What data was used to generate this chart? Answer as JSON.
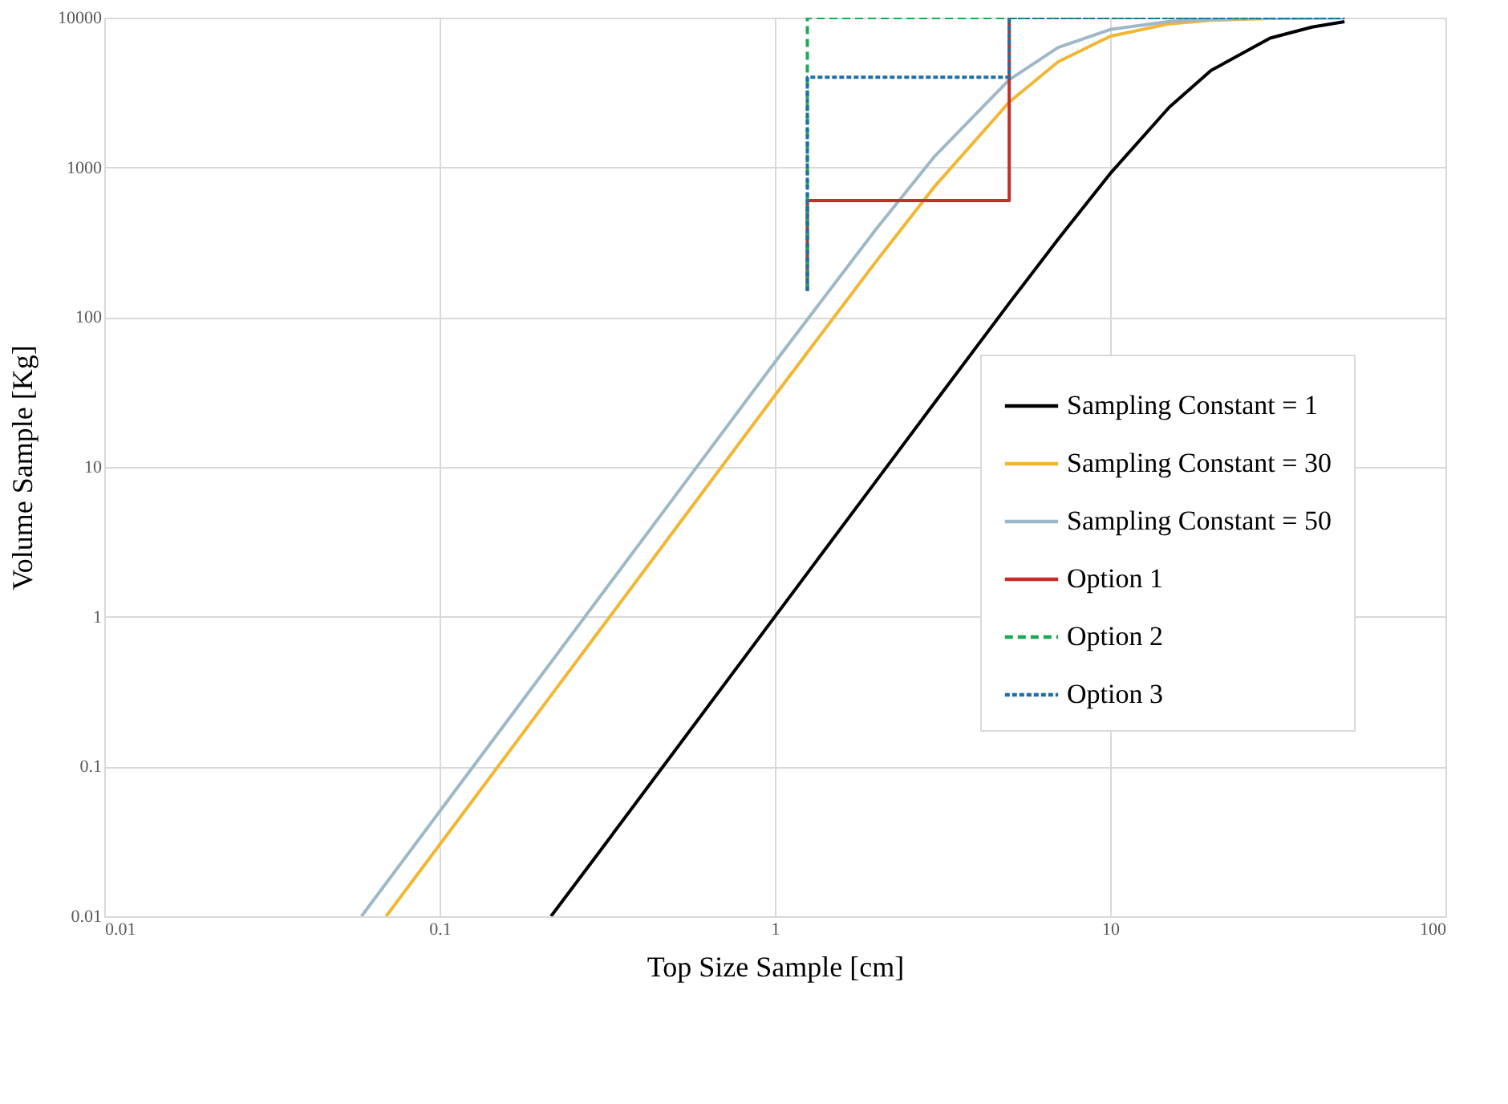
{
  "chart_data": {
    "type": "line",
    "xlabel": "Top Size Sample [cm]",
    "ylabel": "Volume Sample [Kg]",
    "log": "xy",
    "grid": true,
    "legend": "right",
    "marker": "none",
    "xlim": [
      0.01,
      100
    ],
    "xticks": [
      0.01,
      0.1,
      1,
      10,
      100
    ],
    "ylim": [
      0.01,
      10000
    ],
    "yticks": [
      0.01,
      0.1,
      1,
      10,
      100,
      1000,
      10000
    ],
    "series": [
      {
        "name": "Sampling Constant = 1",
        "color": "#000000",
        "line_style": "solid",
        "x": [
          0.215,
          0.3,
          0.5,
          1,
          2,
          3,
          5,
          7,
          10,
          15,
          20,
          30,
          40,
          50
        ],
        "values": [
          0.01,
          0.027,
          0.125,
          1,
          8,
          27,
          124,
          332,
          909,
          2520,
          4440,
          7300,
          8650,
          9400
        ]
      },
      {
        "name": "Sampling Constant = 30",
        "color": "#f2b632",
        "line_style": "solid",
        "x": [
          0.0693,
          0.1,
          0.2,
          0.5,
          1,
          2,
          3,
          5,
          7,
          10,
          15,
          20,
          30,
          50
        ],
        "values": [
          0.01,
          0.03,
          0.24,
          3.75,
          30,
          234,
          749,
          2730,
          5070,
          7500,
          9100,
          9600,
          9880,
          9970
        ]
      },
      {
        "name": "Sampling Constant = 50",
        "color": "#9fb8c8",
        "line_style": "solid",
        "x": [
          0.0585,
          0.1,
          0.2,
          0.5,
          1,
          2,
          3,
          5,
          7,
          10,
          15,
          20,
          30,
          50
        ],
        "values": [
          0.01,
          0.05,
          0.4,
          6.25,
          50,
          385,
          1190,
          3850,
          6320,
          8330,
          9440,
          9760,
          9930,
          9980
        ]
      },
      {
        "name": "Option 1",
        "color": "#c0302b",
        "line_style": "solid",
        "x": [
          1.25,
          1.25,
          5,
          5
        ],
        "values": [
          150,
          600,
          600,
          10000
        ]
      },
      {
        "name": "Option 2",
        "color": "#1fa855",
        "line_style": "dashed",
        "x": [
          1.25,
          1.25,
          50
        ],
        "values": [
          150,
          10000,
          10000
        ]
      },
      {
        "name": "Option 3",
        "color": "#1f6ea8",
        "line_style": "dotted",
        "x": [
          1.25,
          1.25,
          5,
          5,
          50
        ],
        "values": [
          150,
          4000,
          4000,
          10000,
          10000
        ]
      }
    ]
  }
}
